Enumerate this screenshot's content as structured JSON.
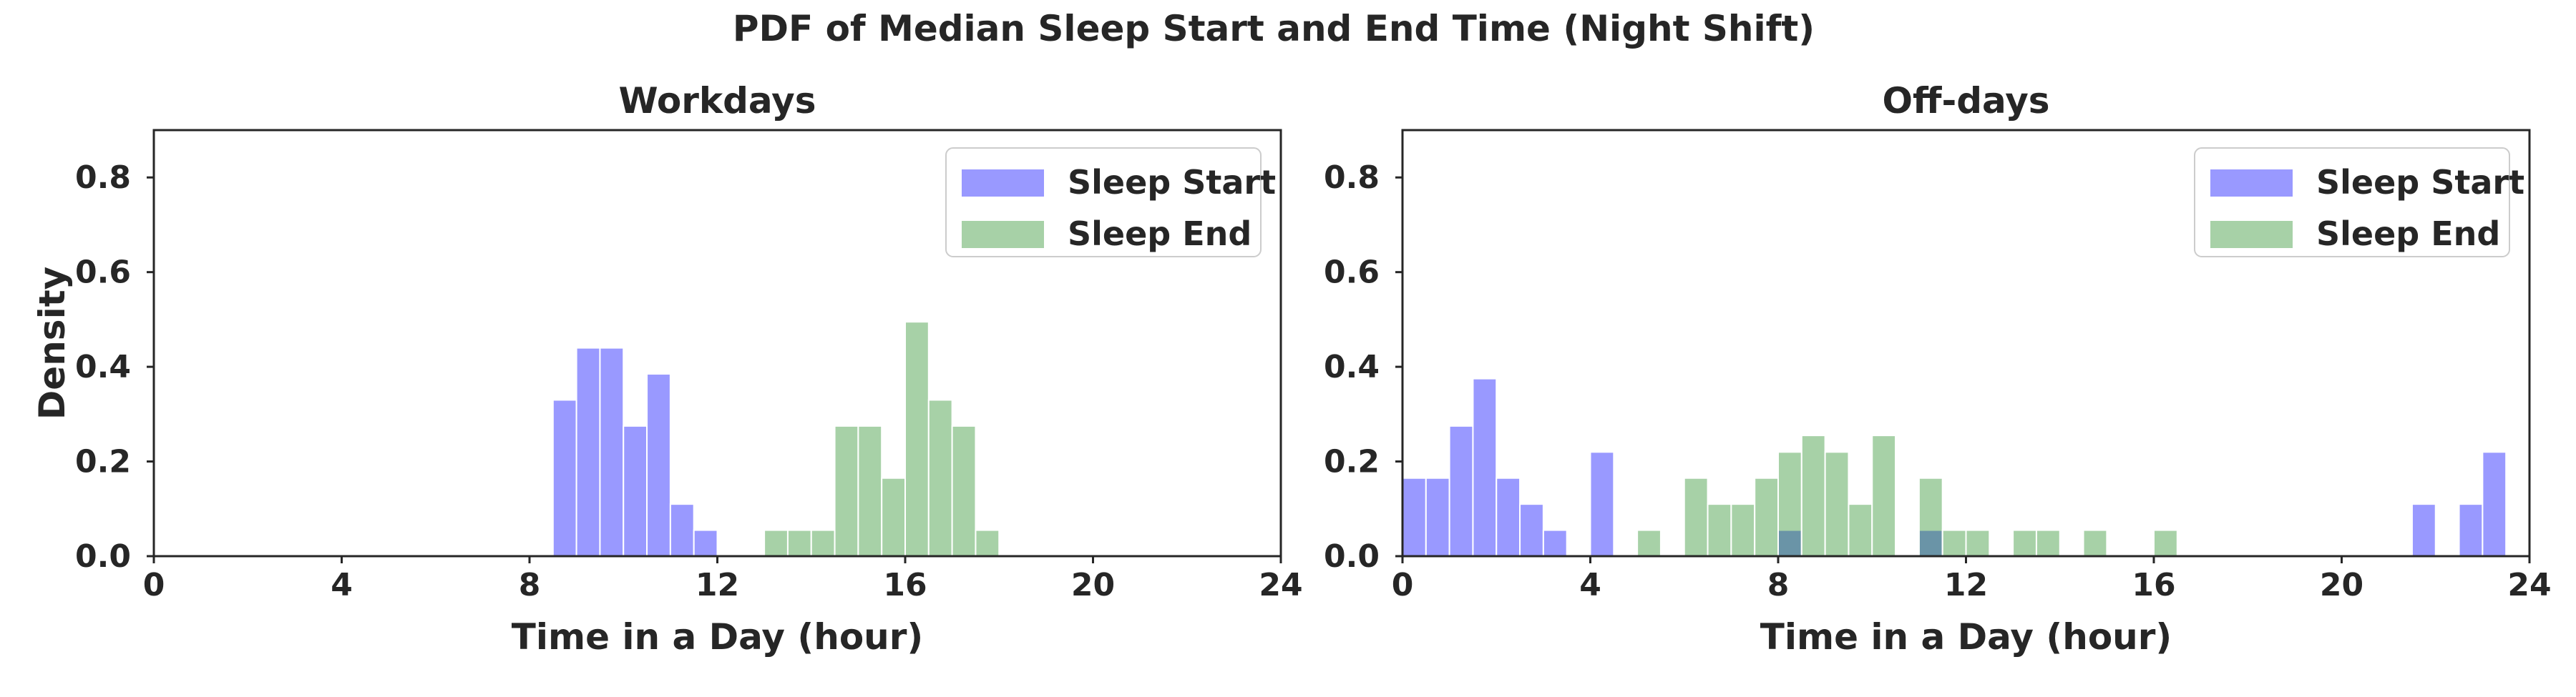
{
  "figure_title": "PDF of Median Sleep Start and End Time (Night Shift)",
  "colors": {
    "start": "#0000ff",
    "end": "#228b22",
    "axis": "#262626"
  },
  "chart_data": [
    {
      "type": "histogram",
      "title": "Workdays",
      "xlabel": "Time in a Day (hour)",
      "ylabel": "Density",
      "xlim": [
        0,
        24
      ],
      "ylim": [
        0,
        0.9
      ],
      "xticks": [
        "0",
        "4",
        "8",
        "12",
        "16",
        "20",
        "24"
      ],
      "yticks": [
        "0.0",
        "0.2",
        "0.4",
        "0.6",
        "0.8"
      ],
      "bin_width": 0.5,
      "legend": {
        "position": "upper-right",
        "entries": [
          "Sleep Start",
          "Sleep End"
        ]
      },
      "series": [
        {
          "name": "Sleep Start",
          "color": "#0000ff",
          "alpha": 0.4,
          "bin_starts": [
            8.5,
            9.0,
            9.5,
            10.0,
            10.5,
            11.0,
            11.5
          ],
          "values": [
            0.33,
            0.44,
            0.44,
            0.275,
            0.385,
            0.11,
            0.055
          ]
        },
        {
          "name": "Sleep End",
          "color": "#228b22",
          "alpha": 0.4,
          "bin_starts": [
            13.0,
            13.5,
            14.0,
            14.5,
            15.0,
            15.5,
            16.0,
            16.5,
            17.0,
            17.5
          ],
          "values": [
            0.055,
            0.055,
            0.055,
            0.275,
            0.275,
            0.165,
            0.495,
            0.33,
            0.275,
            0.055
          ]
        }
      ]
    },
    {
      "type": "histogram",
      "title": "Off-days",
      "xlabel": "Time in a Day (hour)",
      "ylabel": "",
      "xlim": [
        0,
        24
      ],
      "ylim": [
        0,
        0.9
      ],
      "xticks": [
        "0",
        "4",
        "8",
        "12",
        "16",
        "20",
        "24"
      ],
      "yticks": [
        "0.0",
        "0.2",
        "0.4",
        "0.6",
        "0.8"
      ],
      "bin_width": 0.5,
      "legend": {
        "position": "upper-right",
        "entries": [
          "Sleep Start",
          "Sleep End"
        ]
      },
      "series": [
        {
          "name": "Sleep Start",
          "color": "#0000ff",
          "alpha": 0.4,
          "bin_starts": [
            0.0,
            0.5,
            1.0,
            1.5,
            2.0,
            2.5,
            3.0,
            4.0,
            8.0,
            11.0,
            21.5,
            22.5,
            23.0
          ],
          "values": [
            0.165,
            0.165,
            0.275,
            0.375,
            0.165,
            0.11,
            0.055,
            0.22,
            0.055,
            0.055,
            0.11,
            0.11,
            0.22
          ]
        },
        {
          "name": "Sleep End",
          "color": "#228b22",
          "alpha": 0.4,
          "bin_starts": [
            5.0,
            6.0,
            6.5,
            7.0,
            7.5,
            8.0,
            8.5,
            9.0,
            9.5,
            10.0,
            11.0,
            11.5,
            12.0,
            13.0,
            13.5,
            14.5,
            16.0
          ],
          "values": [
            0.055,
            0.165,
            0.11,
            0.11,
            0.165,
            0.22,
            0.255,
            0.22,
            0.11,
            0.255,
            0.165,
            0.055,
            0.055,
            0.055,
            0.055,
            0.055,
            0.055
          ]
        }
      ]
    }
  ]
}
